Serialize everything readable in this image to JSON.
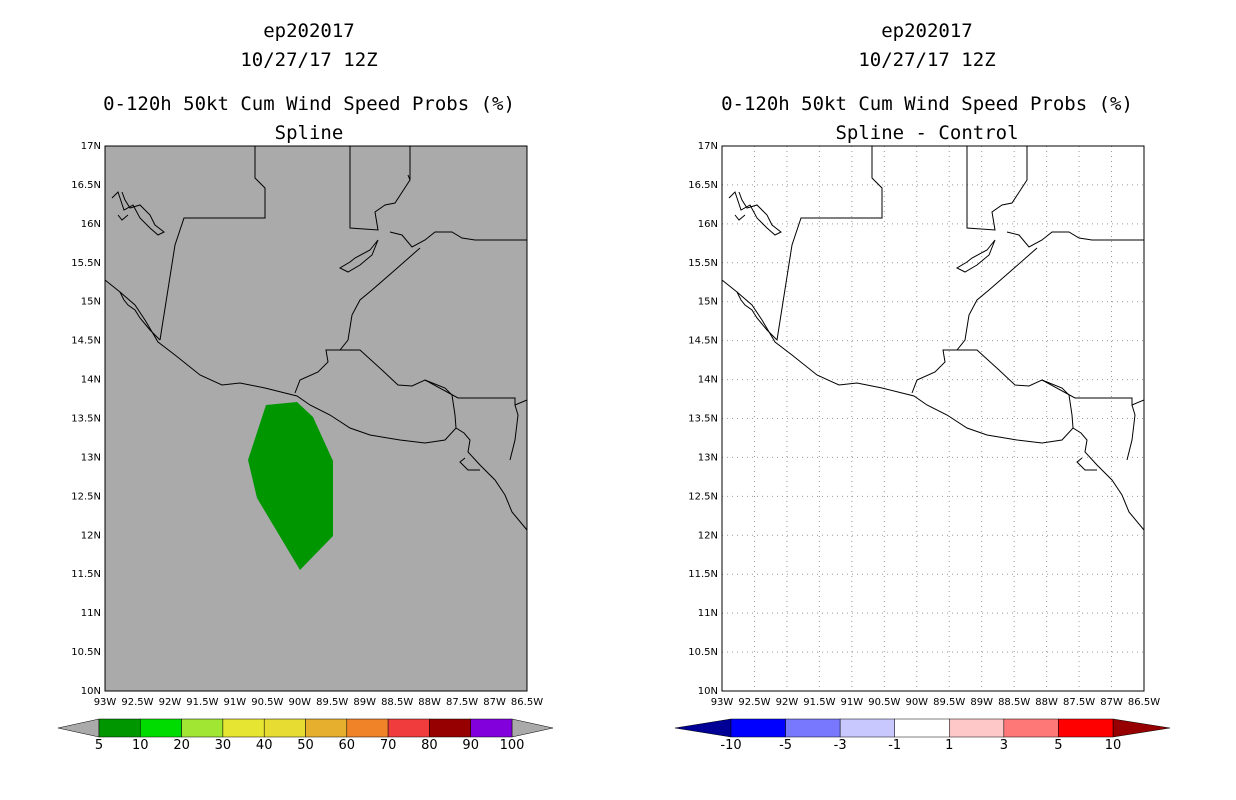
{
  "panels": [
    {
      "title_line1": "ep202017",
      "title_line2": "10/27/17 12Z",
      "title_line3": "0-120h 50kt Cum Wind Speed Probs (%)",
      "subtitle": "Spline",
      "background": "#aaaaaa",
      "probability_region_color": "#009600",
      "colorbar_labels": [
        "5",
        "10",
        "20",
        "30",
        "40",
        "50",
        "60",
        "70",
        "80",
        "90",
        "100"
      ],
      "colorbar_colors": [
        "#009600",
        "#00dc00",
        "#a0e632",
        "#e6e632",
        "#e6dc32",
        "#e6af2d",
        "#f08228",
        "#f03c3c",
        "#960000",
        "#8200dc"
      ],
      "colorbar_end_color": "#aaaaaa"
    },
    {
      "title_line1": "ep202017",
      "title_line2": "10/27/17 12Z",
      "title_line3": "0-120h 50kt Cum Wind Speed Probs (%)",
      "subtitle": "Spline - Control",
      "background": "#ffffff",
      "colorbar_labels": [
        "-10",
        "-5",
        "-3",
        "-1",
        "1",
        "3",
        "5",
        "10"
      ],
      "colorbar_colors": [
        "#0000ff",
        "#7878ff",
        "#c8c8ff",
        "#ffffff",
        "#ffc8c8",
        "#ff7878",
        "#ff0000"
      ],
      "colorbar_left_end_color": "#000096",
      "colorbar_right_end_color": "#960000"
    }
  ],
  "map": {
    "lat_labels": [
      "17N",
      "16.5N",
      "16N",
      "15.5N",
      "15N",
      "14.5N",
      "14N",
      "13.5N",
      "13N",
      "12.5N",
      "12N",
      "11.5N",
      "11N",
      "10.5N",
      "10N"
    ],
    "lon_labels": [
      "93W",
      "92.5W",
      "92W",
      "91.5W",
      "91W",
      "90.5W",
      "90W",
      "89.5W",
      "89W",
      "88.5W",
      "88W",
      "87.5W",
      "87W",
      "86.5W"
    ]
  }
}
